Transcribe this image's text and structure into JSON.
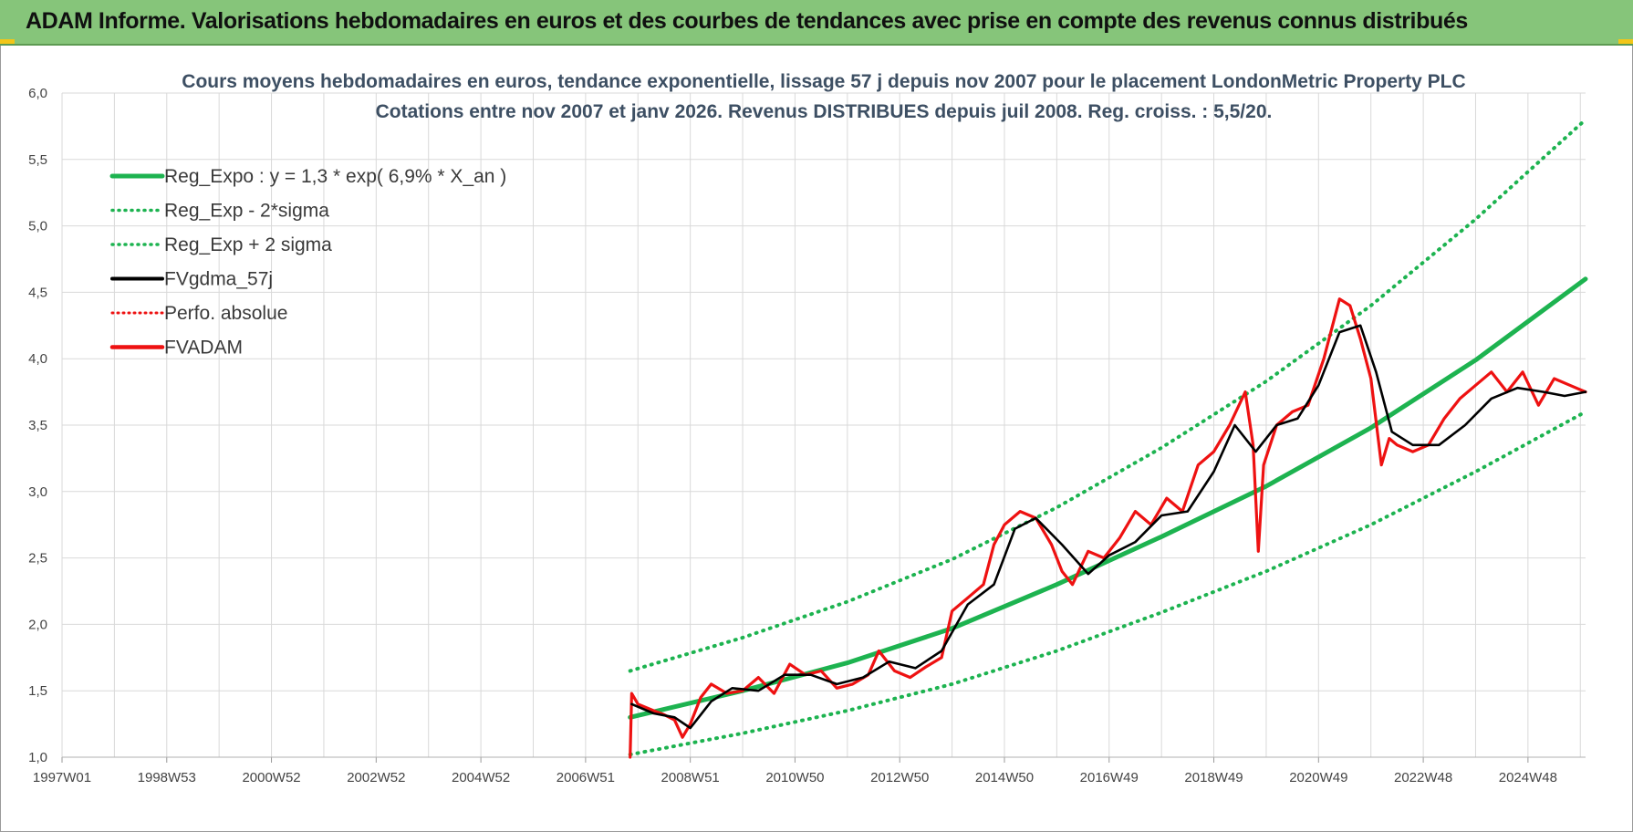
{
  "banner": {
    "title": "ADAM Informe. Valorisations hebdomadaires en euros et des courbes de tendances avec prise en compte des revenus connus distribués"
  },
  "colors": {
    "banner_bg": "#86c57a",
    "reg_expo": "#1db350",
    "fvgdma": "#000000",
    "fvadam": "#ee1111",
    "perfo": "#ee1111",
    "grid": "#d9d9d9"
  },
  "chart_data": {
    "type": "line",
    "title": [
      "Cours moyens hebdomadaires en euros, tendance exponentielle, lissage 57 j depuis nov 2007  pour le placement LondonMetric Property PLC",
      "Cotations entre nov 2007 et janv 2026. Revenus DISTRIBUES depuis juil 2008. Reg. croiss. : 5,5/20."
    ],
    "xlabel": "",
    "ylabel": "",
    "x_ticks": [
      "1997W01",
      "1998W53",
      "2000W52",
      "2002W52",
      "2004W52",
      "2006W51",
      "2008W51",
      "2010W50",
      "2012W50",
      "2014W50",
      "2016W49",
      "2018W49",
      "2020W49",
      "2022W48",
      "2024W48"
    ],
    "xlim": [
      1997.0,
      2026.1
    ],
    "ylim": [
      1.0,
      6.0
    ],
    "y_ticks": [
      "1,0",
      "1,5",
      "2,0",
      "2,5",
      "3,0",
      "3,5",
      "4,0",
      "4,5",
      "5,0",
      "5,5",
      "6,0"
    ],
    "grid": true,
    "legend_position": "top-left",
    "legend": [
      {
        "label": "Reg_Expo : y = 1,3 * exp( 6,9% *  X_an )",
        "style": "solid-green"
      },
      {
        "label": "Reg_Exp - 2*sigma",
        "style": "dotted-green"
      },
      {
        "label": "Reg_Exp + 2 sigma",
        "style": "dotted-green"
      },
      {
        "label": "FVgdma_57j",
        "style": "solid-black"
      },
      {
        "label": "Perfo. absolue",
        "style": "dotted-red"
      },
      {
        "label": "FVADAM",
        "style": "solid-red"
      }
    ],
    "series": [
      {
        "name": "Reg_Expo : y = 1,3 * exp( 6,9% *  X_an )",
        "x": [
          2007.85,
          2010,
          2012,
          2014,
          2016,
          2018,
          2020,
          2022,
          2024,
          2026.1
        ],
        "values": [
          1.3,
          1.5,
          1.71,
          1.97,
          2.3,
          2.66,
          3.04,
          3.48,
          3.99,
          4.6
        ]
      },
      {
        "name": "Reg_Exp - 2*sigma",
        "x": [
          2007.85,
          2010,
          2012,
          2014,
          2016,
          2018,
          2020,
          2022,
          2024,
          2026.1
        ],
        "values": [
          1.02,
          1.18,
          1.35,
          1.55,
          1.8,
          2.09,
          2.4,
          2.75,
          3.15,
          3.6
        ]
      },
      {
        "name": "Reg_Exp + 2 sigma",
        "x": [
          2007.85,
          2010,
          2012,
          2014,
          2016,
          2018,
          2020,
          2022,
          2024,
          2026.1
        ],
        "values": [
          1.65,
          1.9,
          2.17,
          2.49,
          2.88,
          3.33,
          3.83,
          4.4,
          5.05,
          5.8
        ]
      },
      {
        "name": "FVgdma_57j",
        "x": [
          2007.88,
          2008.3,
          2008.7,
          2009.0,
          2009.4,
          2009.8,
          2010.3,
          2010.8,
          2011.3,
          2011.8,
          2012.3,
          2012.8,
          2013.3,
          2013.8,
          2014.3,
          2014.8,
          2015.2,
          2015.6,
          2016.1,
          2016.6,
          2017.0,
          2017.5,
          2018.0,
          2018.5,
          2019.0,
          2019.4,
          2019.8,
          2020.2,
          2020.6,
          2021.0,
          2021.4,
          2021.8,
          2022.1,
          2022.4,
          2022.8,
          2023.3,
          2023.8,
          2024.3,
          2024.8,
          2025.3,
          2025.7,
          2026.1
        ],
        "values": [
          1.4,
          1.33,
          1.3,
          1.22,
          1.42,
          1.52,
          1.5,
          1.62,
          1.62,
          1.55,
          1.6,
          1.72,
          1.67,
          1.8,
          2.15,
          2.3,
          2.72,
          2.8,
          2.6,
          2.38,
          2.52,
          2.62,
          2.82,
          2.85,
          3.15,
          3.5,
          3.3,
          3.5,
          3.55,
          3.8,
          4.2,
          4.25,
          3.9,
          3.45,
          3.35,
          3.35,
          3.5,
          3.7,
          3.78,
          3.75,
          3.72,
          3.75
        ]
      },
      {
        "name": "FVADAM",
        "x": [
          2007.85,
          2007.88,
          2008.0,
          2008.3,
          2008.5,
          2008.7,
          2008.85,
          2009.0,
          2009.2,
          2009.4,
          2009.7,
          2010.0,
          2010.3,
          2010.6,
          2010.9,
          2011.2,
          2011.5,
          2011.8,
          2012.1,
          2012.4,
          2012.6,
          2012.9,
          2013.2,
          2013.5,
          2013.8,
          2014.0,
          2014.3,
          2014.6,
          2014.8,
          2015.0,
          2015.3,
          2015.6,
          2015.9,
          2016.1,
          2016.3,
          2016.6,
          2016.9,
          2017.2,
          2017.5,
          2017.8,
          2018.1,
          2018.4,
          2018.7,
          2019.0,
          2019.3,
          2019.6,
          2019.75,
          2019.85,
          2019.95,
          2020.2,
          2020.5,
          2020.8,
          2021.1,
          2021.4,
          2021.6,
          2021.8,
          2022.0,
          2022.2,
          2022.35,
          2022.5,
          2022.8,
          2023.1,
          2023.4,
          2023.7,
          2024.0,
          2024.3,
          2024.6,
          2024.9,
          2025.2,
          2025.5,
          2025.8,
          2026.1
        ],
        "values": [
          1.0,
          1.48,
          1.4,
          1.35,
          1.32,
          1.28,
          1.15,
          1.25,
          1.45,
          1.55,
          1.48,
          1.5,
          1.6,
          1.48,
          1.7,
          1.62,
          1.65,
          1.52,
          1.55,
          1.62,
          1.8,
          1.65,
          1.6,
          1.68,
          1.75,
          2.1,
          2.2,
          2.3,
          2.6,
          2.75,
          2.85,
          2.8,
          2.6,
          2.4,
          2.3,
          2.55,
          2.5,
          2.65,
          2.85,
          2.75,
          2.95,
          2.85,
          3.2,
          3.3,
          3.5,
          3.75,
          3.35,
          2.55,
          3.2,
          3.5,
          3.6,
          3.65,
          4.0,
          4.45,
          4.4,
          4.15,
          3.85,
          3.2,
          3.4,
          3.35,
          3.3,
          3.35,
          3.55,
          3.7,
          3.8,
          3.9,
          3.75,
          3.9,
          3.65,
          3.85,
          3.8,
          3.75
        ]
      }
    ]
  }
}
